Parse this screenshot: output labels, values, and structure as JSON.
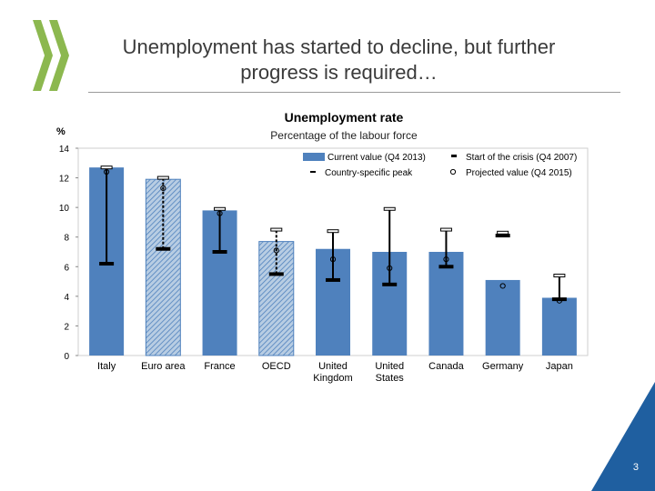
{
  "slide": {
    "title_line1": "Unemployment has started to decline, but further",
    "title_line2": "progress is required…",
    "page_number": "3",
    "colors": {
      "bar": "#4f81bd",
      "oecd_green": "#8cb84f",
      "marker": "#000000",
      "corner": "#1f5fa0"
    }
  },
  "chart_data": {
    "type": "bar",
    "title": "Unemployment rate",
    "subtitle": "Percentage of the labour force",
    "ylabel": "%",
    "ylim": [
      0,
      14
    ],
    "yticks": [
      0,
      2,
      4,
      6,
      8,
      10,
      12,
      14
    ],
    "grid": false,
    "legend_position": "top-right",
    "legend": {
      "current": "Current value (Q4 2013)",
      "start": "Start of the crisis (Q4 2007)",
      "peak": "Country-specific peak",
      "projected": "Projected value (Q4 2015)"
    },
    "categories": [
      "Italy",
      "Euro area",
      "France",
      "OECD",
      "United Kingdom",
      "United States",
      "Canada",
      "Germany",
      "Japan"
    ],
    "aggregate": [
      false,
      true,
      false,
      true,
      false,
      false,
      false,
      false,
      false
    ],
    "series": [
      {
        "name": "Current value (Q4 2013)",
        "values": [
          12.7,
          11.9,
          9.8,
          7.7,
          7.2,
          7.0,
          7.0,
          5.1,
          3.9
        ]
      },
      {
        "name": "Start of the crisis (Q4 2007)",
        "values": [
          6.2,
          7.2,
          7.0,
          5.5,
          5.1,
          4.8,
          6.0,
          8.1,
          3.8
        ]
      },
      {
        "name": "Country-specific peak",
        "values": [
          12.7,
          12.0,
          9.9,
          8.5,
          8.4,
          9.9,
          8.5,
          8.3,
          5.4
        ]
      },
      {
        "name": "Projected value (Q4 2015)",
        "values": [
          12.4,
          11.3,
          9.6,
          7.1,
          6.5,
          5.9,
          6.5,
          4.7,
          3.7
        ]
      }
    ]
  }
}
